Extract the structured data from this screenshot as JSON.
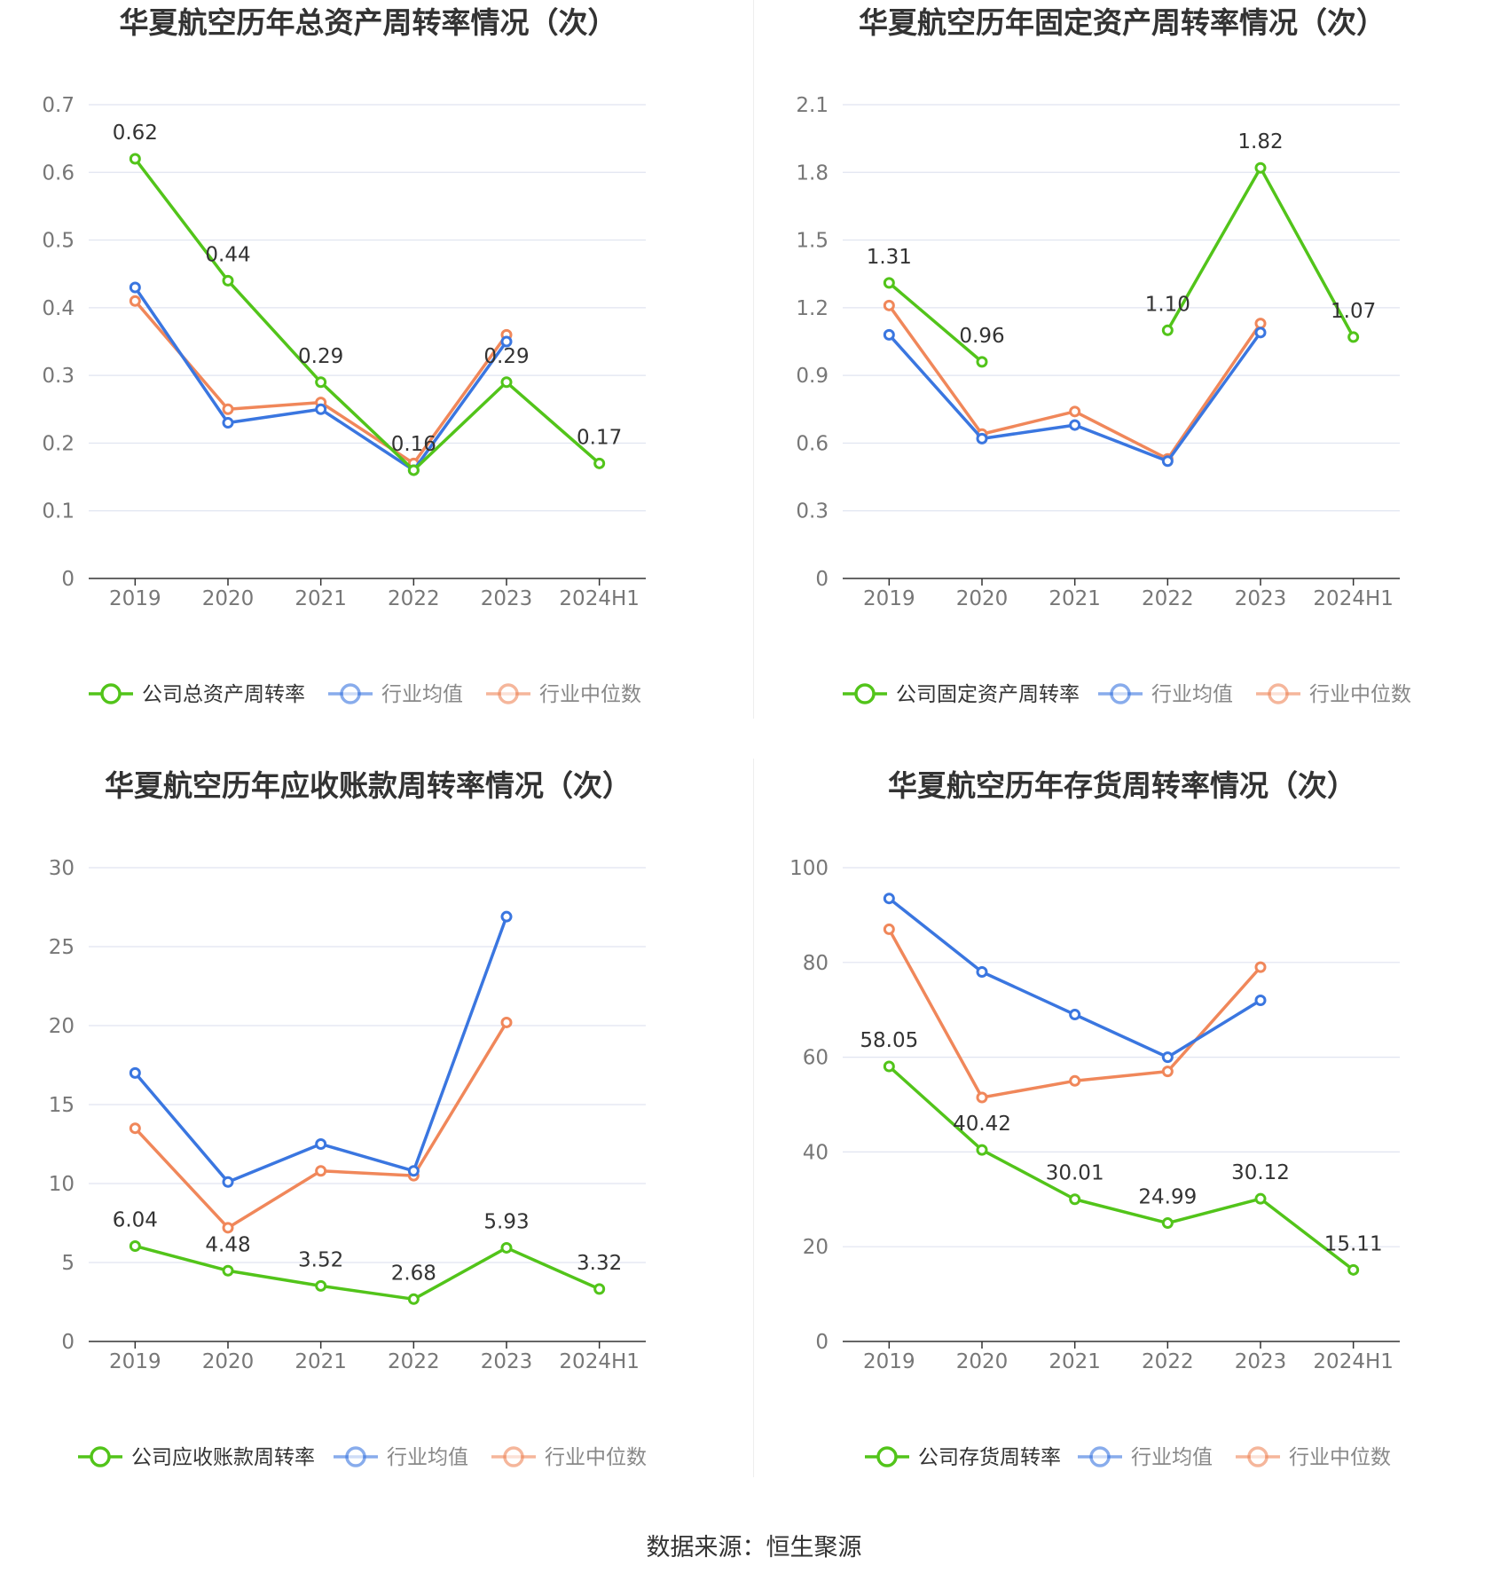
{
  "palette": {
    "company": "#52c41a",
    "avg": "#3a76e0",
    "median": "#f0875a",
    "grid": "#e0e4f0",
    "axis": "#333333",
    "tick": "#777777",
    "label": "#333333"
  },
  "source_text": "数据来源：恒生聚源",
  "chart_data": [
    {
      "type": "line",
      "title": "华夏航空历年总资产周转率情况（次）",
      "categories": [
        "2019",
        "2020",
        "2021",
        "2022",
        "2023",
        "2024H1"
      ],
      "ylim": [
        0,
        0.7
      ],
      "yticks": [
        "0",
        "0.1",
        "0.2",
        "0.3",
        "0.4",
        "0.5",
        "0.6",
        "0.7"
      ],
      "series": [
        {
          "name": "公司总资产周转率",
          "role": "company",
          "values": [
            0.62,
            0.44,
            0.29,
            0.16,
            0.29,
            0.17
          ],
          "labels": [
            "0.62",
            "0.44",
            "0.29",
            "0.16",
            "0.29",
            "0.17"
          ]
        },
        {
          "name": "行业均值",
          "role": "avg",
          "values": [
            0.43,
            0.23,
            0.25,
            0.16,
            0.35,
            null
          ]
        },
        {
          "name": "行业中位数",
          "role": "median",
          "values": [
            0.41,
            0.25,
            0.26,
            0.17,
            0.36,
            null
          ]
        }
      ],
      "grid": true,
      "legend": "bottom"
    },
    {
      "type": "line",
      "title": "华夏航空历年固定资产周转率情况（次）",
      "categories": [
        "2019",
        "2020",
        "2021",
        "2022",
        "2023",
        "2024H1"
      ],
      "ylim": [
        0,
        2.1
      ],
      "yticks": [
        "0",
        "0.3",
        "0.6",
        "0.9",
        "1.2",
        "1.5",
        "1.8",
        "2.1"
      ],
      "series": [
        {
          "name": "公司固定资产周转率",
          "role": "company",
          "values": [
            1.31,
            0.96,
            null,
            1.1,
            1.82,
            1.07
          ],
          "labels": [
            "1.31",
            "0.96",
            null,
            "1.10",
            "1.82",
            "1.07"
          ]
        },
        {
          "name": "行业均值",
          "role": "avg",
          "values": [
            1.08,
            0.62,
            0.68,
            0.52,
            1.09,
            null
          ]
        },
        {
          "name": "行业中位数",
          "role": "median",
          "values": [
            1.21,
            0.64,
            0.74,
            0.53,
            1.13,
            null
          ]
        }
      ],
      "grid": true,
      "legend": "bottom"
    },
    {
      "type": "line",
      "title": "华夏航空历年应收账款周转率情况（次）",
      "categories": [
        "2019",
        "2020",
        "2021",
        "2022",
        "2023",
        "2024H1"
      ],
      "ylim": [
        0,
        30
      ],
      "yticks": [
        "0",
        "5",
        "10",
        "15",
        "20",
        "25",
        "30"
      ],
      "series": [
        {
          "name": "公司应收账款周转率",
          "role": "company",
          "values": [
            6.04,
            4.48,
            3.52,
            2.68,
            5.93,
            3.32
          ],
          "labels": [
            "6.04",
            "4.48",
            "3.52",
            "2.68",
            "5.93",
            "3.32"
          ]
        },
        {
          "name": "行业均值",
          "role": "avg",
          "values": [
            17.0,
            10.1,
            12.5,
            10.8,
            26.9,
            null
          ]
        },
        {
          "name": "行业中位数",
          "role": "median",
          "values": [
            13.5,
            7.2,
            10.8,
            10.5,
            20.2,
            null
          ]
        }
      ],
      "grid": true,
      "legend": "bottom"
    },
    {
      "type": "line",
      "title": "华夏航空历年存货周转率情况（次）",
      "categories": [
        "2019",
        "2020",
        "2021",
        "2022",
        "2023",
        "2024H1"
      ],
      "ylim": [
        0,
        100
      ],
      "yticks": [
        "0",
        "20",
        "40",
        "60",
        "80",
        "100"
      ],
      "series": [
        {
          "name": "公司存货周转率",
          "role": "company",
          "values": [
            58.05,
            40.42,
            30.01,
            24.99,
            30.12,
            15.11
          ],
          "labels": [
            "58.05",
            "40.42",
            "30.01",
            "24.99",
            "30.12",
            "15.11"
          ]
        },
        {
          "name": "行业均值",
          "role": "avg",
          "values": [
            93.5,
            78.0,
            69.0,
            60.0,
            72.0,
            null
          ]
        },
        {
          "name": "行业中位数",
          "role": "median",
          "values": [
            87.0,
            51.5,
            55.0,
            57.0,
            79.0,
            null
          ]
        }
      ],
      "grid": true,
      "legend": "bottom"
    }
  ]
}
